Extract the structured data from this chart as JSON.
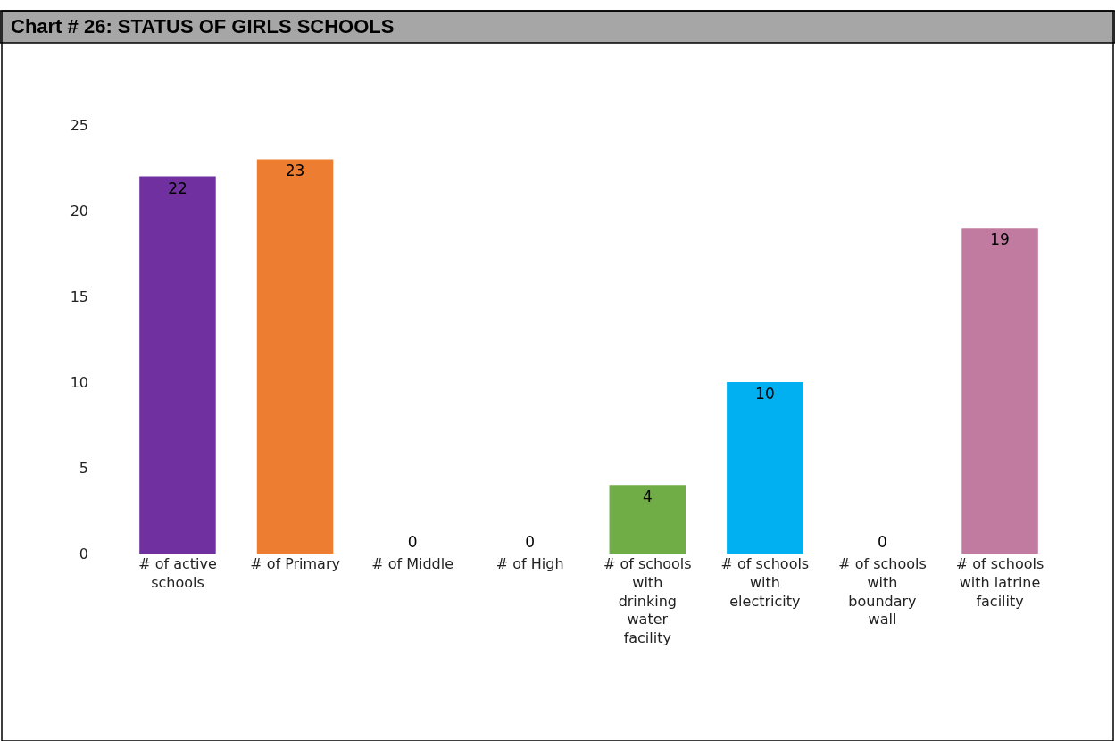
{
  "chart_data": {
    "type": "bar",
    "title": "Chart # 26: STATUS OF GIRLS SCHOOLS",
    "categories": [
      "# of active schools",
      "# of Primary",
      "# of Middle",
      "# of High",
      "# of schools with drinking water facility",
      "# of schools with electricity",
      "# of schools with boundary wall",
      "# of schools with latrine facility"
    ],
    "values": [
      22,
      23,
      0,
      0,
      4,
      10,
      0,
      19
    ],
    "colors": [
      "#7030a0",
      "#ed7d31",
      "#7aaadc",
      "#ffcc33",
      "#70ad47",
      "#00b0f0",
      "#c5d0ea",
      "#c27ba0"
    ],
    "ylim": [
      0,
      25
    ],
    "yticks": [
      0,
      5,
      10,
      15,
      20,
      25
    ],
    "data_labels": true
  }
}
